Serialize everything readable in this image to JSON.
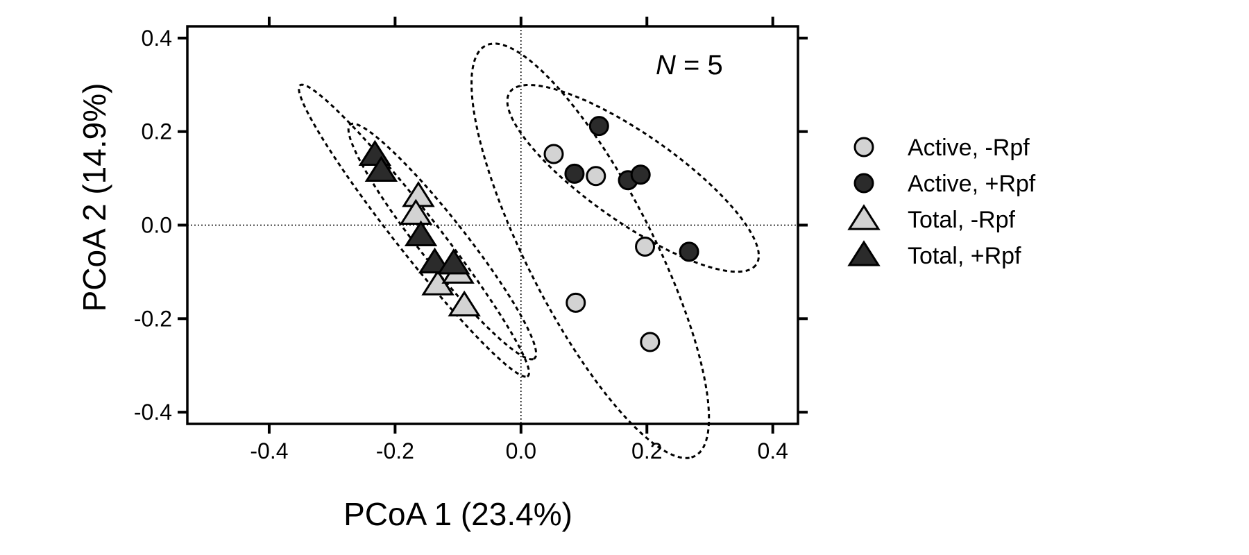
{
  "chart_data": {
    "type": "scatter",
    "xlabel": "PCoA 1 (23.4%)",
    "ylabel": "PCoA 2 (14.9%)",
    "xlim": [
      -0.53,
      0.44
    ],
    "ylim": [
      -0.425,
      0.425
    ],
    "xticks": [
      -0.4,
      -0.2,
      0.0,
      0.2,
      0.4
    ],
    "xtick_labels": [
      "-0.4",
      "-0.2",
      "0.0",
      "0.2",
      "0.4"
    ],
    "yticks": [
      -0.4,
      -0.2,
      0.0,
      0.2,
      0.4
    ],
    "ytick_labels": [
      "-0.4",
      "-0.2",
      "0.0",
      "0.2",
      "0.4"
    ],
    "reference_lines": {
      "x": 0,
      "y": 0,
      "style": "dotted"
    },
    "annotation": {
      "italic": "N",
      "text": " = 5"
    },
    "grid": false,
    "legend_placement": "right",
    "series": [
      {
        "name": "Active, -Rpf",
        "marker": "circle",
        "color": "#d3d3d3",
        "points": [
          [
            0.052,
            0.152
          ],
          [
            0.119,
            0.105
          ],
          [
            0.197,
            -0.046
          ],
          [
            0.087,
            -0.166
          ],
          [
            0.205,
            -0.25
          ]
        ]
      },
      {
        "name": "Active, +Rpf",
        "marker": "circle",
        "color": "#2b2b2b",
        "points": [
          [
            0.124,
            0.212
          ],
          [
            0.085,
            0.11
          ],
          [
            0.17,
            0.096
          ],
          [
            0.19,
            0.108
          ],
          [
            0.267,
            -0.057
          ]
        ]
      },
      {
        "name": "Total, -Rpf",
        "marker": "triangle",
        "color": "#d3d3d3",
        "points": [
          [
            -0.163,
            0.062
          ],
          [
            -0.167,
            0.024
          ],
          [
            -0.132,
            -0.127
          ],
          [
            -0.1,
            -0.102
          ],
          [
            -0.09,
            -0.172
          ]
        ]
      },
      {
        "name": "Total, +Rpf",
        "marker": "triangle",
        "color": "#2b2b2b",
        "points": [
          [
            -0.232,
            0.15
          ],
          [
            -0.222,
            0.116
          ],
          [
            -0.159,
            -0.022
          ],
          [
            -0.137,
            -0.08
          ],
          [
            -0.107,
            -0.082
          ]
        ]
      }
    ],
    "ellipses": [
      {
        "cx": -0.17,
        "cy": -0.012,
        "rx": 0.36,
        "ry": 0.037,
        "angle_deg": -60
      },
      {
        "cx": -0.125,
        "cy": -0.035,
        "rx": 0.29,
        "ry": 0.04,
        "angle_deg": -60
      },
      {
        "cx": 0.11,
        "cy": -0.055,
        "rx": 0.47,
        "ry": 0.105,
        "angle_deg": -70
      },
      {
        "cx": 0.178,
        "cy": 0.1,
        "rx": 0.27,
        "ry": 0.083,
        "angle_deg": -45
      }
    ]
  },
  "colors": {
    "light_fill": "#d3d3d3",
    "dark_fill": "#2b2b2b",
    "stroke": "#000000"
  }
}
